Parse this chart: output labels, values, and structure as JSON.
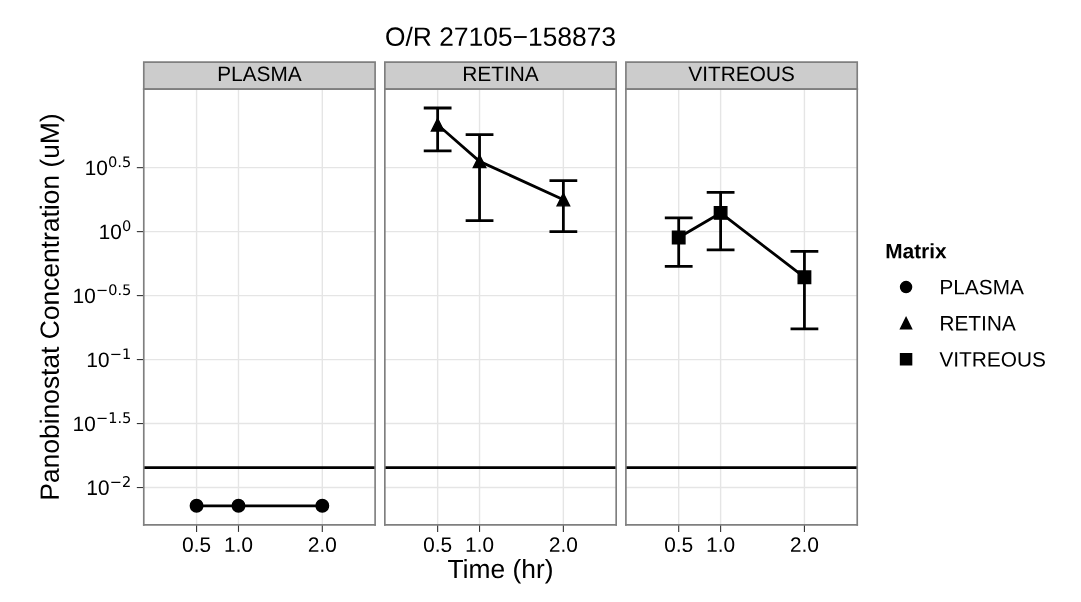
{
  "chart_data": [
    {
      "type": "line",
      "subtitle": "PLASMA",
      "ylabel": "Panobinostat Concentration (uM)",
      "log": true,
      "grid": true,
      "line_style": "solid",
      "x": [
        0.5,
        1,
        2
      ],
      "xlim": [
        -0.13,
        2.63
      ],
      "xticks": [
        {
          "value": 0.5,
          "label": "0.5"
        },
        {
          "value": 1,
          "label": "1.0"
        },
        {
          "value": 2,
          "label": "2.0"
        }
      ],
      "ylim": [
        0.0051,
        13.0
      ],
      "yticks": [
        {
          "value": 3.1623,
          "label": "10$^{0.5}$"
        },
        {
          "value": 1,
          "label": "10$^{0}$"
        },
        {
          "value": 0.31623,
          "label": "10$^{−0.5}$"
        },
        {
          "value": 0.1,
          "label": "10$^{−1}$"
        },
        {
          "value": 0.031623,
          "label": "10$^{−1.5}$"
        },
        {
          "value": 0.01,
          "label": "10$^{−2}$"
        }
      ],
      "ref_lines": [
        {
          "axis": "y",
          "value": 0.0143,
          "color": "#000000"
        }
      ],
      "series": [
        {
          "name": "PLASMA",
          "color": "#000000",
          "marker": "circle",
          "values": [
            0.0072,
            0.0072,
            0.0072
          ]
        }
      ]
    },
    {
      "type": "line",
      "title": "O/R 27105−158873",
      "subtitle": "RETINA",
      "xlabel": "Time (hr)",
      "log": true,
      "grid": true,
      "line_style": "solid",
      "tick_labels": "x",
      "x": [
        0.5,
        1,
        2
      ],
      "xlim": [
        -0.13,
        2.63
      ],
      "xticks": [
        {
          "value": 0.5,
          "label": "0.5"
        },
        {
          "value": 1,
          "label": "1.0"
        },
        {
          "value": 2,
          "label": "2.0"
        }
      ],
      "ylim": [
        0.0051,
        13.0
      ],
      "yticks": [
        3.1623,
        1,
        0.31623,
        0.1,
        0.031623,
        0.01
      ],
      "ref_lines": [
        {
          "axis": "y",
          "value": 0.0143,
          "color": "#000000"
        }
      ],
      "series": [
        {
          "name": "RETINA",
          "color": "#000000",
          "marker": "triangle",
          "values": [
            6.85,
            3.54,
            1.78
          ],
          "errors": [
            [
              4.27,
              9.25
            ],
            [
              1.22,
              5.73
            ],
            [
              1.0,
              2.5
            ]
          ]
        }
      ]
    },
    {
      "type": "line",
      "subtitle": "VITREOUS",
      "legend_title": "Matrix",
      "legend": "right",
      "log": true,
      "grid": true,
      "line_style": "solid",
      "tick_labels": "x",
      "x": [
        0.5,
        1,
        2
      ],
      "xlim": [
        -0.13,
        2.63
      ],
      "xticks": [
        {
          "value": 0.5,
          "label": "0.5"
        },
        {
          "value": 1,
          "label": "1.0"
        },
        {
          "value": 2,
          "label": "2.0"
        }
      ],
      "ylim": [
        0.0051,
        13.0
      ],
      "yticks": [
        3.1623,
        1,
        0.31623,
        0.1,
        0.031623,
        0.01
      ],
      "ref_lines": [
        {
          "axis": "y",
          "value": 0.0143,
          "color": "#000000"
        }
      ],
      "series": [
        {
          "name": "VITREOUS",
          "color": "#000000",
          "marker": "square",
          "values": [
            0.9,
            1.4,
            0.44
          ],
          "errors": [
            [
              0.536,
              1.28
            ],
            [
              0.72,
              2.03
            ],
            [
              0.174,
              0.7
            ]
          ]
        }
      ]
    }
  ]
}
